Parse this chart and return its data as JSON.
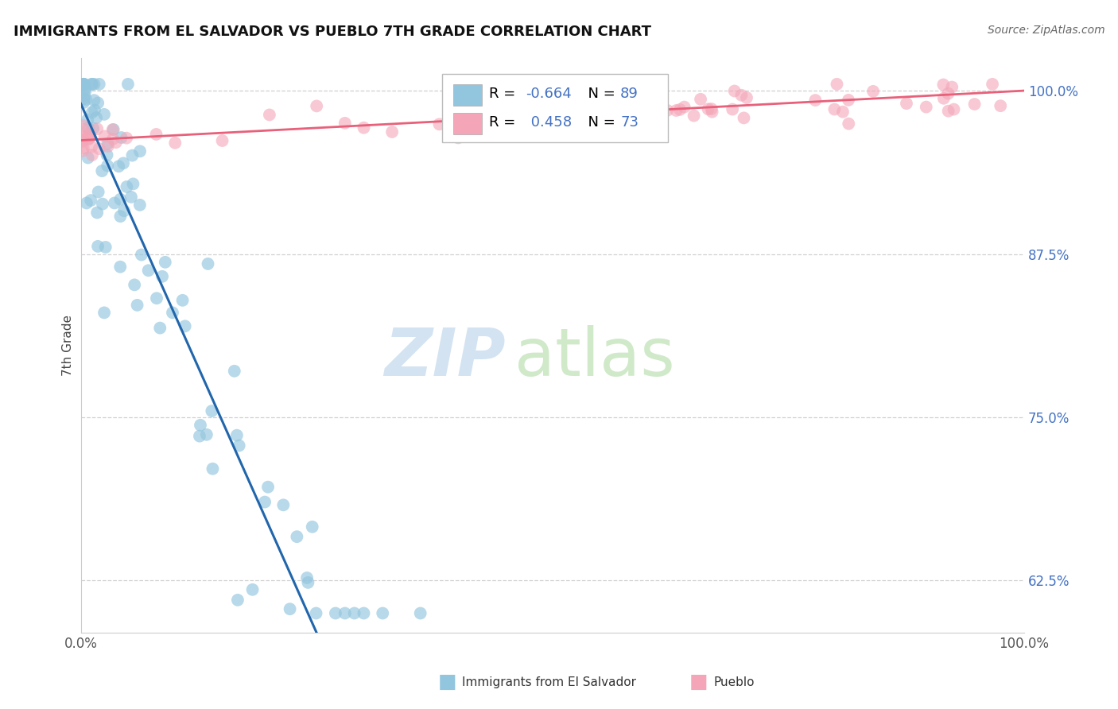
{
  "title": "IMMIGRANTS FROM EL SALVADOR VS PUEBLO 7TH GRADE CORRELATION CHART",
  "source": "Source: ZipAtlas.com",
  "ylabel": "7th Grade",
  "yticks": [
    0.625,
    0.75,
    0.875,
    1.0
  ],
  "ytick_labels": [
    "62.5%",
    "75.0%",
    "87.5%",
    "100.0%"
  ],
  "xlim": [
    0.0,
    1.0
  ],
  "ylim": [
    0.585,
    1.025
  ],
  "blue_R": -0.664,
  "blue_N": 89,
  "pink_R": 0.458,
  "pink_N": 73,
  "blue_color": "#92c5de",
  "blue_line_color": "#2166ac",
  "pink_color": "#f4a6b8",
  "pink_line_color": "#e8607a",
  "background_color": "#ffffff",
  "grid_color": "#d0d0d0",
  "legend_R_color": "#4472c4",
  "legend_N_color": "#4472c4",
  "ytick_color": "#4472c4",
  "blue_line_intercept": 0.99,
  "blue_line_slope": -1.62,
  "blue_line_solid_end": 0.37,
  "pink_line_intercept": 0.962,
  "pink_line_slope": 0.038
}
